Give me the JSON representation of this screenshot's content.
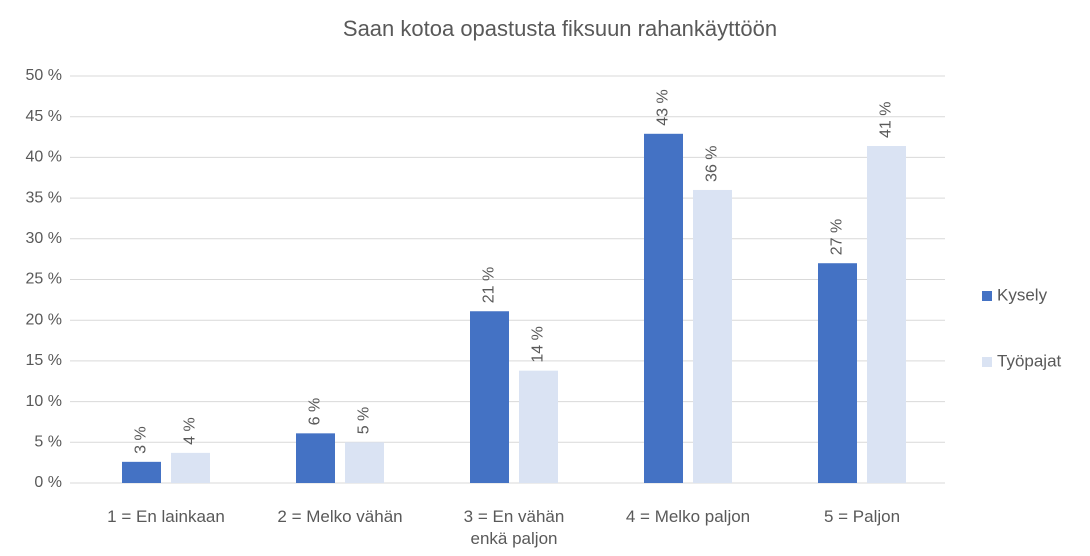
{
  "chart_data": {
    "type": "bar",
    "title": "Saan kotoa opastusta fiksuun rahankäyttöön",
    "categories": [
      "1 = En lainkaan",
      "2 = Melko vähän",
      "3 = En vähän enkä paljon",
      "4 = Melko paljon",
      "5 = Paljon"
    ],
    "series": [
      {
        "name": "Kysely",
        "color": "#4472c4",
        "values": [
          2.6,
          6.1,
          21.1,
          42.9,
          27.0
        ],
        "value_labels": [
          "3 %",
          "6 %",
          "21 %",
          "43 %",
          "27 %"
        ]
      },
      {
        "name": "Työpajat",
        "color": "#dae3f3",
        "values": [
          3.7,
          5.0,
          13.8,
          36.0,
          41.4
        ],
        "value_labels": [
          "4 %",
          "5 %",
          "14 %",
          "36 %",
          "41 %"
        ]
      }
    ],
    "ylim": [
      0,
      50
    ],
    "yticks": [
      {
        "value": 0,
        "label": "0 %"
      },
      {
        "value": 5,
        "label": "5 %"
      },
      {
        "value": 10,
        "label": "10 %"
      },
      {
        "value": 15,
        "label": "15 %"
      },
      {
        "value": 20,
        "label": "20 %"
      },
      {
        "value": 25,
        "label": "25 %"
      },
      {
        "value": 30,
        "label": "30 %"
      },
      {
        "value": 35,
        "label": "35 %"
      },
      {
        "value": 40,
        "label": "40 %"
      },
      {
        "value": 45,
        "label": "45 %"
      },
      {
        "value": 50,
        "label": "50 %"
      }
    ],
    "grid": true,
    "legend": "right"
  }
}
